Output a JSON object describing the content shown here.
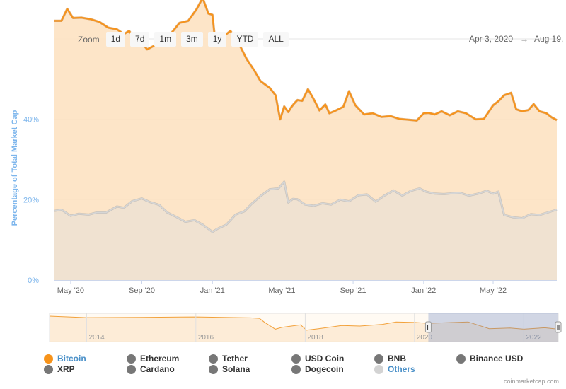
{
  "zoom": {
    "label": "Zoom",
    "buttons": [
      "1d",
      "7d",
      "1m",
      "3m",
      "1y",
      "YTD",
      "ALL"
    ]
  },
  "range": {
    "from": "Apr 3, 2020",
    "sep": "→",
    "to": "Aug 19,"
  },
  "credit": "coinmarketcap.com",
  "chart_data": {
    "type": "area",
    "ylabel": "Percentage of Total Market Cap",
    "y_ticks": [
      "0%",
      "20%",
      "40%"
    ],
    "y_tick_values": [
      0,
      20,
      40
    ],
    "ylim": [
      0,
      60
    ],
    "x_tick_labels": [
      "May '20",
      "Sep '20",
      "Jan '21",
      "May '21",
      "Sep '21",
      "Jan '22",
      "May '22"
    ],
    "x_tick_dates": [
      "2020-05-01",
      "2020-09-01",
      "2021-01-01",
      "2021-05-01",
      "2021-09-01",
      "2022-01-01",
      "2022-05-01"
    ],
    "xlim": [
      "2020-04-03",
      "2022-08-19"
    ],
    "grid": true,
    "series": [
      {
        "name": "Bitcoin",
        "color": "#f7931a",
        "x": [
          "2020-04-03",
          "2020-04-15",
          "2020-04-25",
          "2020-05-05",
          "2020-05-20",
          "2020-06-05",
          "2020-06-20",
          "2020-07-05",
          "2020-07-20",
          "2020-08-01",
          "2020-08-10",
          "2020-08-25",
          "2020-09-01",
          "2020-09-10",
          "2020-09-25",
          "2020-10-10",
          "2020-10-25",
          "2020-11-05",
          "2020-11-20",
          "2020-12-05",
          "2020-12-15",
          "2020-12-25",
          "2021-01-01",
          "2021-01-05",
          "2021-01-15",
          "2021-01-25",
          "2021-02-01",
          "2021-02-15",
          "2021-03-01",
          "2021-03-15",
          "2021-03-25",
          "2021-04-10",
          "2021-04-20",
          "2021-04-28",
          "2021-05-05",
          "2021-05-12",
          "2021-05-17",
          "2021-05-22",
          "2021-05-28",
          "2021-06-05",
          "2021-06-15",
          "2021-06-25",
          "2021-07-05",
          "2021-07-15",
          "2021-07-22",
          "2021-08-01",
          "2021-08-15",
          "2021-08-25",
          "2021-09-05",
          "2021-09-20",
          "2021-10-05",
          "2021-10-20",
          "2021-11-05",
          "2021-11-20",
          "2021-12-05",
          "2021-12-20",
          "2022-01-01",
          "2022-01-10",
          "2022-01-20",
          "2022-02-01",
          "2022-02-15",
          "2022-03-01",
          "2022-03-15",
          "2022-04-01",
          "2022-04-15",
          "2022-05-01",
          "2022-05-10",
          "2022-05-20",
          "2022-06-01",
          "2022-06-10",
          "2022-06-20",
          "2022-07-01",
          "2022-07-10",
          "2022-07-20",
          "2022-08-01",
          "2022-08-10",
          "2022-08-19"
        ],
        "values": [
          64.5,
          64.5,
          67.5,
          65.2,
          65.3,
          64.9,
          64.2,
          62.8,
          62.4,
          61.2,
          62.0,
          59.0,
          59.0,
          57.4,
          58.5,
          59.5,
          62.0,
          64.0,
          64.5,
          67.5,
          70.2,
          66.3,
          66.0,
          60.5,
          60.0,
          61.2,
          62.0,
          59.0,
          55.0,
          52.0,
          49.5,
          47.8,
          46.0,
          40.0,
          43.2,
          41.8,
          43.0,
          43.9,
          44.8,
          44.6,
          47.5,
          45.0,
          42.2,
          43.7,
          41.5,
          42.1,
          43.1,
          47.0,
          43.5,
          41.2,
          41.5,
          40.6,
          40.8,
          40.1,
          39.9,
          39.7,
          41.5,
          41.6,
          41.2,
          42.0,
          41.0,
          42.0,
          41.5,
          40.0,
          40.1,
          43.5,
          44.5,
          46.0,
          46.6,
          42.5,
          42.0,
          42.3,
          43.8,
          42.0,
          41.5,
          40.5,
          39.8
        ]
      },
      {
        "name": "Others",
        "color": "#d3d3d3",
        "x": [
          "2020-04-03",
          "2020-04-15",
          "2020-05-01",
          "2020-05-15",
          "2020-06-01",
          "2020-06-15",
          "2020-07-01",
          "2020-07-20",
          "2020-08-01",
          "2020-08-15",
          "2020-09-01",
          "2020-09-15",
          "2020-10-01",
          "2020-10-15",
          "2020-11-01",
          "2020-11-15",
          "2020-12-01",
          "2020-12-15",
          "2021-01-01",
          "2021-01-10",
          "2021-01-25",
          "2021-02-10",
          "2021-02-25",
          "2021-03-10",
          "2021-03-25",
          "2021-04-10",
          "2021-04-25",
          "2021-05-05",
          "2021-05-12",
          "2021-05-20",
          "2021-05-28",
          "2021-06-10",
          "2021-06-25",
          "2021-07-10",
          "2021-07-25",
          "2021-08-10",
          "2021-08-25",
          "2021-09-10",
          "2021-09-25",
          "2021-10-10",
          "2021-10-25",
          "2021-11-10",
          "2021-11-25",
          "2021-12-10",
          "2021-12-25",
          "2022-01-05",
          "2022-01-20",
          "2022-02-05",
          "2022-02-20",
          "2022-03-05",
          "2022-03-20",
          "2022-04-05",
          "2022-04-20",
          "2022-05-01",
          "2022-05-10",
          "2022-05-20",
          "2022-06-05",
          "2022-06-20",
          "2022-07-05",
          "2022-07-20",
          "2022-08-05",
          "2022-08-19"
        ],
        "values": [
          17.2,
          17.5,
          16.0,
          16.5,
          16.3,
          16.8,
          16.8,
          18.3,
          18.0,
          19.6,
          20.3,
          19.4,
          18.7,
          16.8,
          15.6,
          14.5,
          14.9,
          13.8,
          12.0,
          12.8,
          13.8,
          16.3,
          17.1,
          19.0,
          20.9,
          22.6,
          22.8,
          24.5,
          19.3,
          20.2,
          20.1,
          18.8,
          18.5,
          19.1,
          18.8,
          20.0,
          19.6,
          21.1,
          21.3,
          19.5,
          21.0,
          22.3,
          21.0,
          22.2,
          22.8,
          22.0,
          21.5,
          21.4,
          21.6,
          21.7,
          21.0,
          21.5,
          22.2,
          21.5,
          22.0,
          16.2,
          15.6,
          15.4,
          16.4,
          16.2,
          16.9,
          17.5
        ]
      }
    ]
  },
  "navigator": {
    "year_labels": [
      "2014",
      "2016",
      "2018",
      "2020",
      "2022"
    ]
  },
  "legend": [
    {
      "label": "Bitcoin",
      "color": "#f7931a",
      "active": true
    },
    {
      "label": "Ethereum",
      "color": "#777777"
    },
    {
      "label": "Tether",
      "color": "#777777"
    },
    {
      "label": "USD Coin",
      "color": "#777777"
    },
    {
      "label": "BNB",
      "color": "#777777"
    },
    {
      "label": "Binance USD",
      "color": "#777777"
    },
    {
      "label": "XRP",
      "color": "#777777"
    },
    {
      "label": "Cardano",
      "color": "#777777"
    },
    {
      "label": "Solana",
      "color": "#777777"
    },
    {
      "label": "Dogecoin",
      "color": "#777777"
    },
    {
      "label": "Others",
      "color": "#d3d3d3",
      "active": true
    }
  ]
}
